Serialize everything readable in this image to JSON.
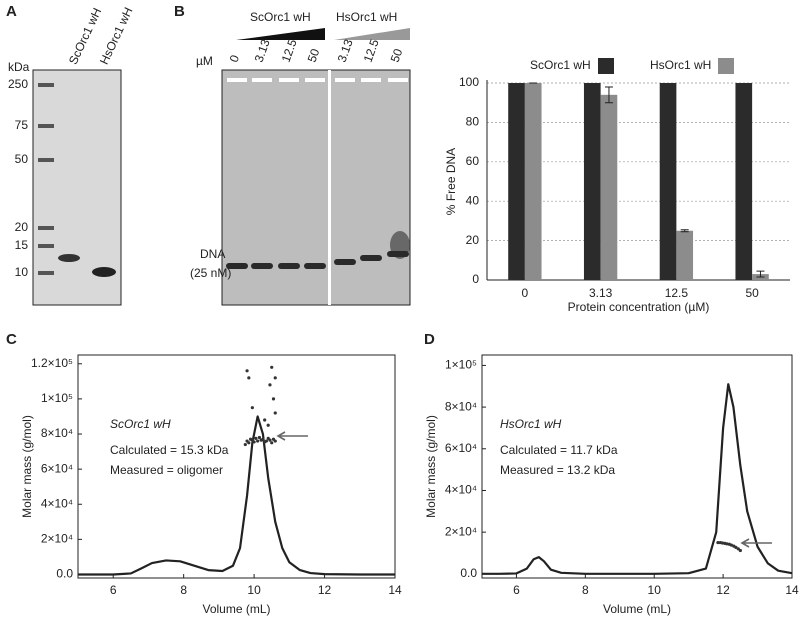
{
  "panels": {
    "a": "A",
    "b": "B",
    "c": "C",
    "d": "D"
  },
  "gel_a": {
    "unit": "kDa",
    "markers": [
      250,
      75,
      50,
      20,
      15,
      10
    ],
    "lanes": [
      "ScOrc1 wH",
      "HsOrc1 wH"
    ]
  },
  "gel_b": {
    "unit": "µM",
    "groups": [
      {
        "label": "ScOrc1 wH",
        "concentrations": [
          "0",
          "3.13",
          "12.5",
          "50"
        ]
      },
      {
        "label": "HsOrc1 wH",
        "concentrations": [
          "3.13",
          "12.5",
          "50"
        ]
      }
    ],
    "band_label": [
      "DNA",
      "(25 nM)"
    ]
  },
  "chart_data": [
    {
      "type": "bar",
      "categories": [
        "0",
        "3.13",
        "12.5",
        "50"
      ],
      "series": [
        {
          "name": "ScOrc1 wH",
          "color": "#2b2b2b",
          "values": [
            100,
            100,
            100,
            100
          ]
        },
        {
          "name": "HsOrc1 wH",
          "color": "#8c8c8c",
          "values": [
            100,
            94,
            25,
            3
          ],
          "errors": [
            0,
            4,
            0.5,
            1.5
          ]
        }
      ],
      "ylim": [
        0,
        100
      ],
      "yticks": [
        0,
        20,
        40,
        60,
        80,
        100
      ],
      "grid": true,
      "legend": "top",
      "xlabel": "Protein concentration (µM)",
      "ylabel": "% Free DNA"
    },
    {
      "type": "line",
      "xlim": [
        5,
        14
      ],
      "xticks": [
        6,
        8,
        10,
        12,
        14
      ],
      "ylim": [
        -2000,
        125000
      ],
      "yticks": [
        {
          "value": 0,
          "label": "0.0"
        },
        {
          "value": 20000,
          "label": "2×10⁴"
        },
        {
          "value": 40000,
          "label": "4×10⁴"
        },
        {
          "value": 60000,
          "label": "6×10⁴"
        },
        {
          "value": 80000,
          "label": "8×10⁴"
        },
        {
          "value": 100000,
          "label": "1×10⁵"
        },
        {
          "value": 120000,
          "label": "1.2×10⁵"
        }
      ],
      "x": [
        5,
        5.5,
        6,
        6.5,
        6.8,
        7.1,
        7.5,
        7.9,
        8.3,
        8.7,
        9.1,
        9.4,
        9.6,
        9.8,
        9.95,
        10.1,
        10.25,
        10.4,
        10.6,
        10.8,
        11,
        11.3,
        11.6,
        12,
        13,
        14
      ],
      "series": [
        {
          "color": "#222222",
          "values": [
            0,
            0,
            0,
            600,
            3500,
            6500,
            8000,
            7500,
            5000,
            2500,
            2000,
            5000,
            15000,
            45000,
            75000,
            90000,
            80000,
            55000,
            30000,
            15000,
            7000,
            2500,
            800,
            200,
            0,
            0
          ]
        }
      ],
      "molar_mass": {
        "color": "#333333",
        "x": [
          9.75,
          9.8,
          9.85,
          9.9,
          9.95,
          10,
          10.05,
          10.1,
          10.15,
          10.2,
          10.25,
          10.3,
          10.35,
          10.4,
          10.45,
          10.5,
          10.55,
          10.6,
          9.8,
          9.95,
          10.3,
          10.45,
          10.5,
          10.55,
          10.6,
          10.6,
          10.4,
          9.85
        ],
        "values": [
          74000,
          76000,
          75000,
          77000,
          76500,
          75500,
          77500,
          76000,
          78000,
          76500,
          77000,
          75500,
          76000,
          77500,
          76500,
          75000,
          77000,
          76000,
          116000,
          95000,
          88000,
          108000,
          118000,
          100000,
          112000,
          92000,
          85000,
          112000
        ]
      },
      "annotations": [
        "ScOrc1 wH",
        "Calculated = 15.3 kDa",
        "Measured = oligomer"
      ],
      "xlabel": "Volume (mL)",
      "ylabel": "Molar mass (g/mol)"
    },
    {
      "type": "line",
      "xlim": [
        5,
        14
      ],
      "xticks": [
        6,
        8,
        10,
        12,
        14
      ],
      "ylim": [
        -2000,
        105000
      ],
      "yticks": [
        {
          "value": 0,
          "label": "0.0"
        },
        {
          "value": 20000,
          "label": "2×10⁴"
        },
        {
          "value": 40000,
          "label": "4×10⁴"
        },
        {
          "value": 60000,
          "label": "6×10⁴"
        },
        {
          "value": 80000,
          "label": "8×10⁴"
        },
        {
          "value": 100000,
          "label": "1×10⁵"
        }
      ],
      "x": [
        5,
        5.5,
        6,
        6.3,
        6.5,
        6.65,
        6.8,
        7,
        7.3,
        8,
        9,
        10,
        11,
        11.5,
        11.8,
        12,
        12.15,
        12.3,
        12.5,
        12.7,
        13,
        13.3,
        13.6,
        14
      ],
      "series": [
        {
          "color": "#222222",
          "values": [
            0,
            0,
            200,
            2500,
            7000,
            8000,
            6000,
            2000,
            500,
            0,
            0,
            0,
            300,
            2500,
            20000,
            70000,
            91000,
            80000,
            52000,
            30000,
            13000,
            5000,
            1500,
            300
          ]
        }
      ],
      "molar_mass": {
        "color": "#333333",
        "x": [
          11.85,
          11.92,
          11.98,
          12.05,
          12.11,
          12.18,
          12.24,
          12.31,
          12.37,
          12.44,
          12.5
        ],
        "values": [
          15000,
          15000,
          14800,
          14600,
          14400,
          14200,
          13800,
          13300,
          12700,
          12000,
          11200
        ]
      },
      "annotations": [
        "HsOrc1 wH",
        "Calculated = 11.7 kDa",
        "Measured = 13.2 kDa"
      ],
      "xlabel": "Volume (mL)",
      "ylabel": "Molar mass (g/mol)"
    }
  ]
}
